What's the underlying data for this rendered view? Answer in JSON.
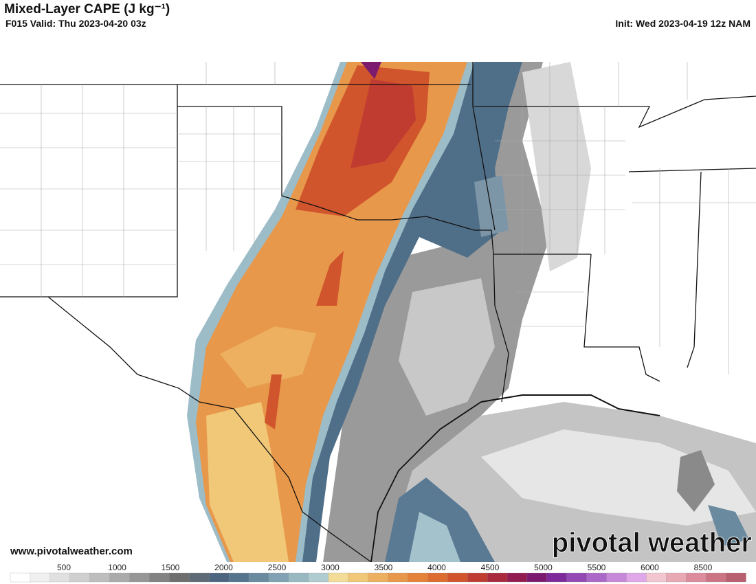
{
  "header": {
    "title": "Mixed-Layer CAPE (J kg⁻¹)",
    "valid": "F015 Valid: Thu 2023-04-20 03z",
    "init": "Init: Wed 2023-04-19 12z NAM"
  },
  "footer": {
    "website": "www.pivotalweather.com",
    "watermark": "pivotal weather"
  },
  "colorbar": {
    "labels": [
      500,
      1000,
      1500,
      2000,
      2500,
      3000,
      3500,
      4000,
      4500,
      5000,
      5500,
      6000,
      8500
    ],
    "colors": [
      "#ffffff",
      "#f0f0f0",
      "#e0e0e0",
      "#cfcfcf",
      "#bdbdbd",
      "#aaaaaa",
      "#969696",
      "#828282",
      "#6e6e6e",
      "#5e6a76",
      "#4d6580",
      "#55748e",
      "#6a8aa0",
      "#80a2b2",
      "#98b8c2",
      "#b0ccd0",
      "#f2dc98",
      "#f0c878",
      "#ecb060",
      "#e8984a",
      "#e4823a",
      "#dc6c30",
      "#d0542c",
      "#c03c30",
      "#a82a3c",
      "#921c50",
      "#7c1a70",
      "#7e2a9a",
      "#9448b4",
      "#ac68c8",
      "#c888da",
      "#e0a8e8",
      "#f2c6d0",
      "#e8a8b4",
      "#dc8c9c",
      "#cc7484",
      "#b86070"
    ]
  }
}
